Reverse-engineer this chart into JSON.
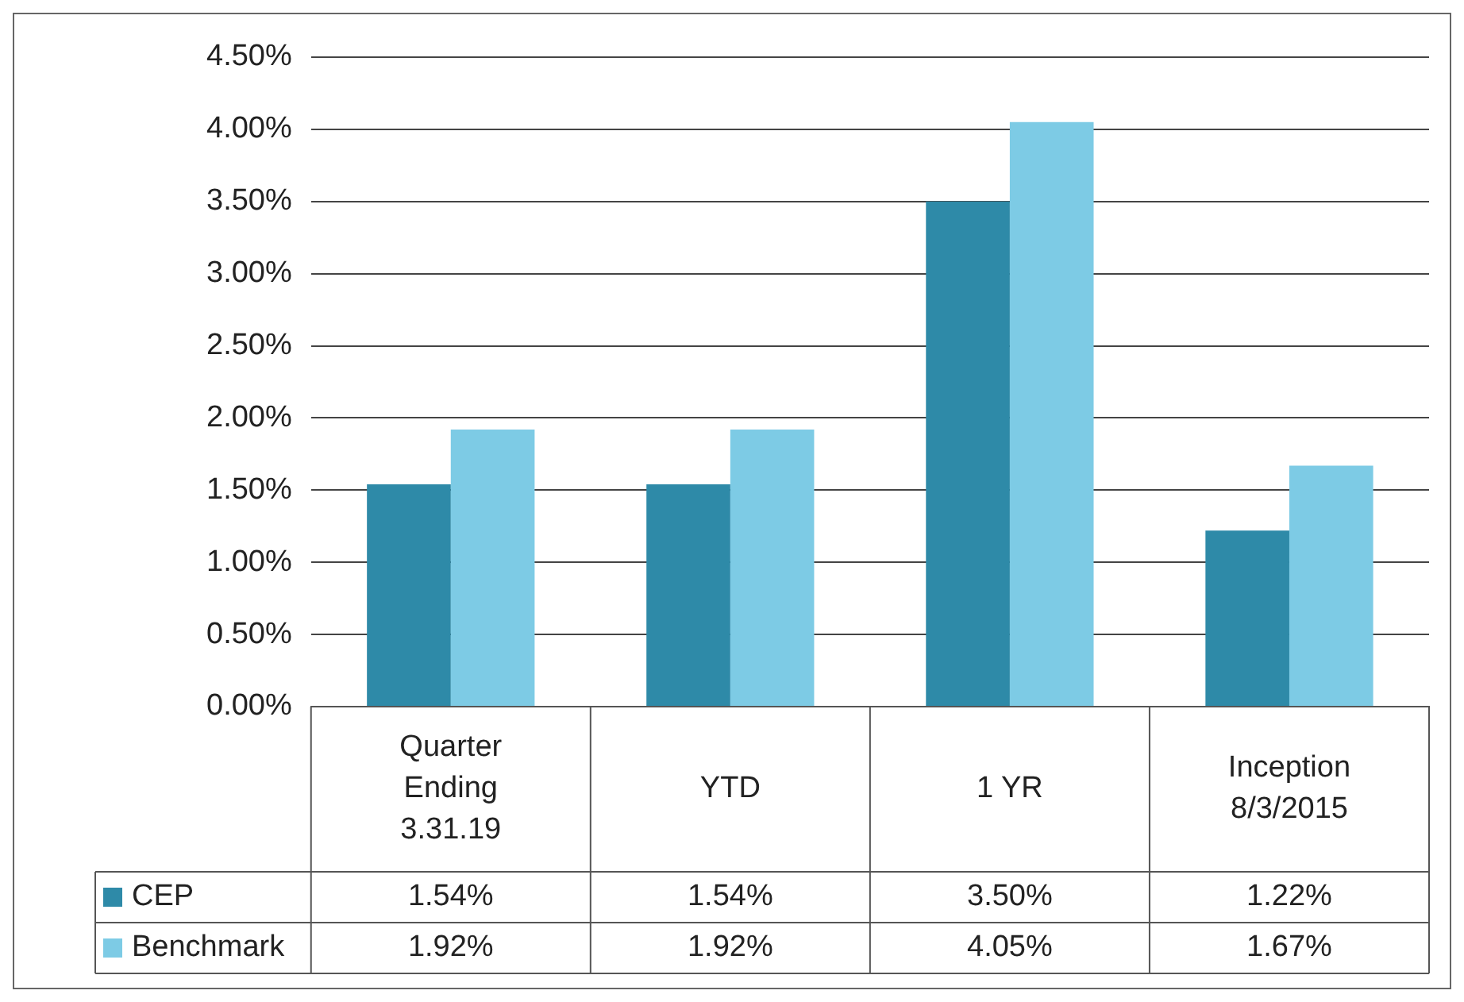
{
  "chart_data": {
    "type": "bar",
    "categories": [
      "Quarter Ending 3.31.19",
      "YTD",
      "1 YR",
      "Inception 8/3/2015"
    ],
    "series": [
      {
        "name": "CEP",
        "color": "#2e8aa8",
        "values": [
          1.54,
          1.54,
          3.5,
          1.22
        ],
        "value_labels": [
          "1.54%",
          "1.54%",
          "3.50%",
          "1.22%"
        ]
      },
      {
        "name": "Benchmark",
        "color": "#7dcbe5",
        "values": [
          1.92,
          1.92,
          4.05,
          1.67
        ],
        "value_labels": [
          "1.92%",
          "1.92%",
          "4.05%",
          "1.67%"
        ]
      }
    ],
    "ylim": [
      0,
      4.5
    ],
    "yticks": [
      {
        "value": 0,
        "label": "0.00%"
      },
      {
        "value": 0.5,
        "label": "0.50%"
      },
      {
        "value": 1,
        "label": "1.00%"
      },
      {
        "value": 1.5,
        "label": "1.50%"
      },
      {
        "value": 2,
        "label": "2.00%"
      },
      {
        "value": 2.5,
        "label": "2.50%"
      },
      {
        "value": 3,
        "label": "3.00%"
      },
      {
        "value": 3.5,
        "label": "3.50%"
      },
      {
        "value": 4,
        "label": "4.00%"
      },
      {
        "value": 4.5,
        "label": "4.50%"
      }
    ],
    "grid": "y",
    "legend": "bottom"
  }
}
